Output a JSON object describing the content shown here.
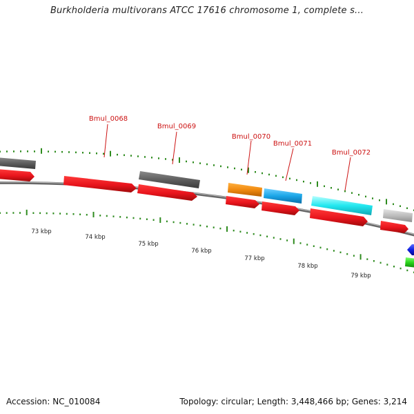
{
  "title": "Burkholderia multivorans ATCC 17616 chromosome 1, complete s...",
  "accession": "Accession: NC_010084",
  "stats": "Topology: circular; Length: 3,448,466 bp; Genes: 3,214",
  "scale_labels": [
    "73 kbp",
    "74 kbp",
    "75 kbp",
    "76 kbp",
    "77 kbp",
    "78 kbp",
    "79 kbp"
  ],
  "colors": {
    "forward_cds": "#e8141c",
    "reverse_cds": "#5e5e5e",
    "tick": "#2e8b1e",
    "label": "#cc1111",
    "backbone": "#888888"
  },
  "genes": [
    {
      "name": "Bmul_0068"
    },
    {
      "name": "Bmul_0069"
    },
    {
      "name": "Bmul_0070"
    },
    {
      "name": "Bmul_0071"
    },
    {
      "name": "Bmul_0072"
    }
  ]
}
